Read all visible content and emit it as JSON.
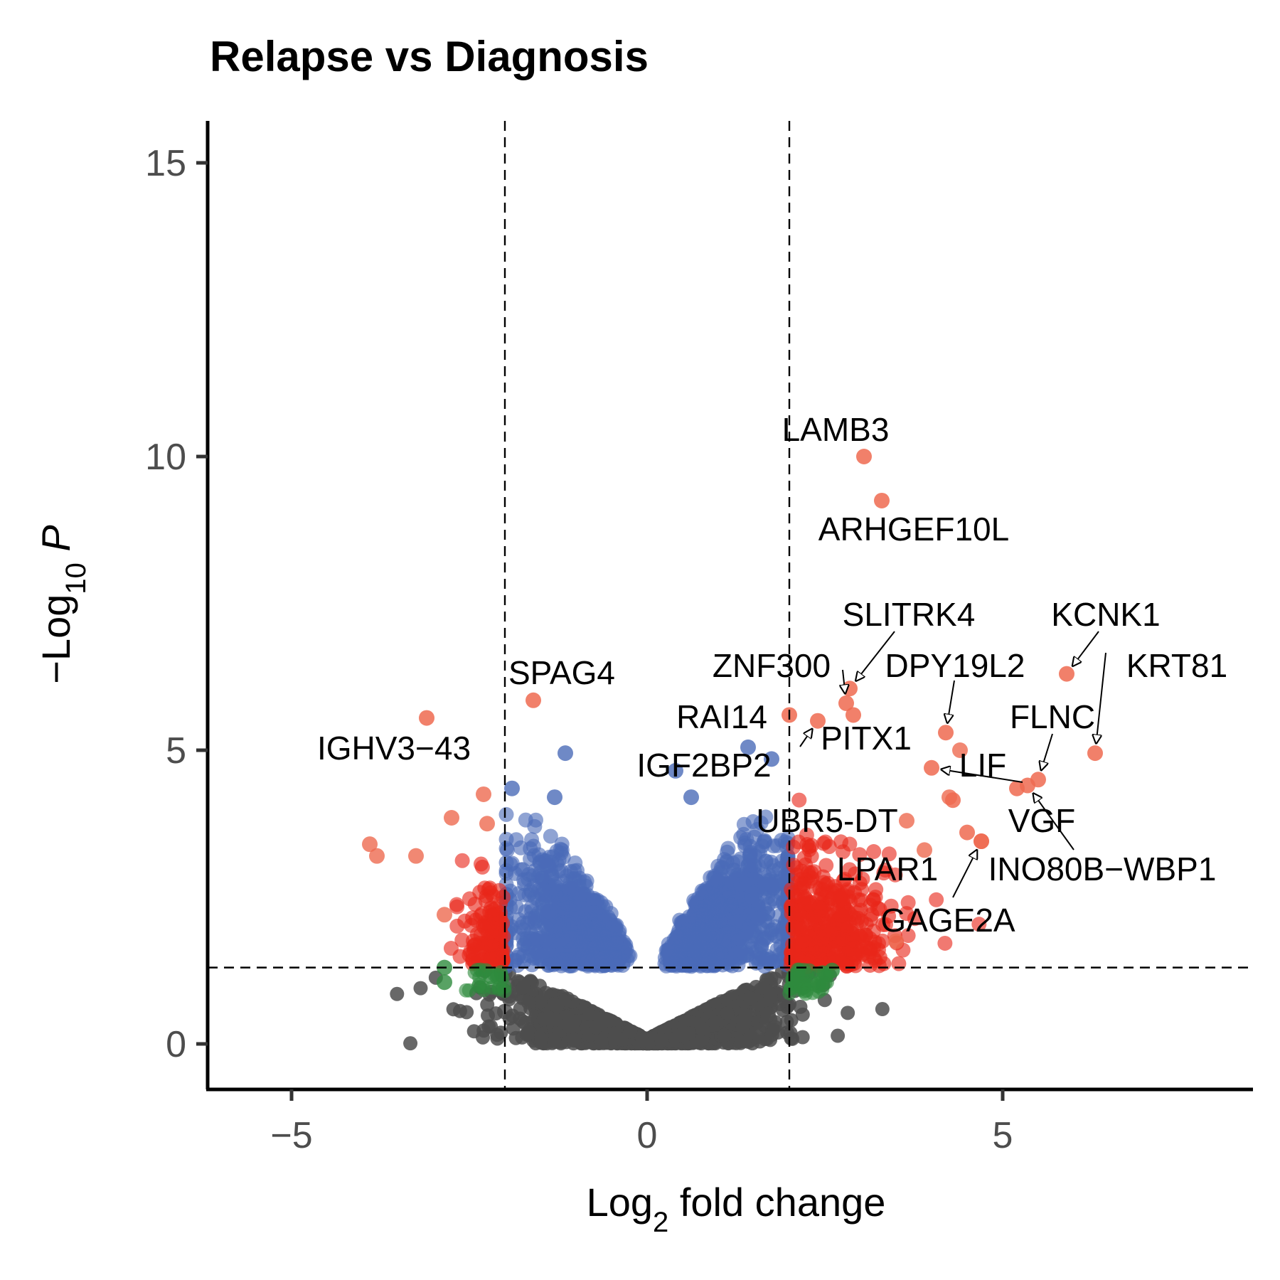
{
  "chart_data": {
    "type": "scatter",
    "title": "Relapse vs Diagnosis",
    "xlabel": {
      "prefix": "Log",
      "sub": "2",
      "suffix": " fold change"
    },
    "ylabel": {
      "prefix": "−Log",
      "sub": "10",
      "suffix": " P"
    },
    "xlim": [
      -6.25,
      8.65
    ],
    "ylim": [
      -0.8,
      15.7
    ],
    "xticks": [
      -5,
      0,
      5
    ],
    "xtick_labels": [
      "−5",
      "0",
      "5"
    ],
    "yticks": [
      0,
      5,
      10,
      15
    ],
    "ytick_labels": [
      "0",
      "5",
      "10",
      "15"
    ],
    "fc_cutoff": 2,
    "p_cutoff": 1.3,
    "grid": false,
    "legend": "none",
    "colors": {
      "NS": "#4d4d4d",
      "log2FC": "#2e8b3d",
      "p": "#4b6bb8",
      "p_and_log2FC": "#e8261a",
      "highlight": "#ee6a50"
    },
    "labeled_points": [
      {
        "gene": "LAMB3",
        "x": 3.05,
        "y": 10.0
      },
      {
        "gene": "ARHGEF10L",
        "x": 3.3,
        "y": 9.25
      },
      {
        "gene": "SLITRK4",
        "x": 2.85,
        "y": 6.05
      },
      {
        "gene": "KCNK1",
        "x": 5.9,
        "y": 6.3
      },
      {
        "gene": "KRT81",
        "x": 6.3,
        "y": 4.95
      },
      {
        "gene": "ZNF300",
        "x": 2.8,
        "y": 5.8
      },
      {
        "gene": "DPY19L2",
        "x": 4.2,
        "y": 5.3
      },
      {
        "gene": "RAI14",
        "x": 2.0,
        "y": 5.6
      },
      {
        "gene": "PITX1",
        "x": 2.9,
        "y": 5.6
      },
      {
        "gene": "FLNC",
        "x": 5.5,
        "y": 4.5
      },
      {
        "gene": "IGF2BP2",
        "x": 2.4,
        "y": 5.5
      },
      {
        "gene": "LIF",
        "x": 4.0,
        "y": 4.7
      },
      {
        "gene": "VGF",
        "x": 5.2,
        "y": 4.35
      },
      {
        "gene": "UBR5-DT",
        "x": 4.3,
        "y": 4.15
      },
      {
        "gene": "SPAG4",
        "x": -1.6,
        "y": 5.85
      },
      {
        "gene": "IGHV3−43",
        "x": -3.1,
        "y": 5.55
      },
      {
        "gene": "LPAR1",
        "x": 4.5,
        "y": 3.6
      },
      {
        "gene": "INO80B−WBP1",
        "x": 5.35,
        "y": 4.4
      },
      {
        "gene": "GAGE2A",
        "x": 4.7,
        "y": 3.45
      }
    ],
    "extra_points": [
      {
        "group": "highlight",
        "x": -3.9,
        "y": 3.4
      },
      {
        "group": "highlight",
        "x": -3.8,
        "y": 3.2
      },
      {
        "group": "highlight",
        "x": -3.25,
        "y": 3.2
      },
      {
        "group": "highlight",
        "x": -2.75,
        "y": 3.85
      },
      {
        "group": "highlight",
        "x": -2.3,
        "y": 4.25
      },
      {
        "group": "highlight",
        "x": -2.25,
        "y": 3.75
      },
      {
        "group": "highlight",
        "x": -2.85,
        "y": 2.2
      },
      {
        "group": "highlight",
        "x": 4.7,
        "y": 3.45
      },
      {
        "group": "highlight",
        "x": 3.5,
        "y": 1.75
      },
      {
        "group": "highlight",
        "x": 3.9,
        "y": 3.3
      },
      {
        "group": "highlight",
        "x": 4.25,
        "y": 4.2
      },
      {
        "group": "highlight",
        "x": 4.4,
        "y": 5.0
      },
      {
        "group": "highlight",
        "x": 3.65,
        "y": 3.8
      },
      {
        "group": "p",
        "x": -1.15,
        "y": 4.95
      },
      {
        "group": "p",
        "x": -1.3,
        "y": 4.2
      },
      {
        "group": "p",
        "x": -1.9,
        "y": 4.35
      },
      {
        "group": "p",
        "x": 0.4,
        "y": 4.65
      },
      {
        "group": "p",
        "x": 0.62,
        "y": 4.2
      },
      {
        "group": "p",
        "x": 1.42,
        "y": 5.05
      },
      {
        "group": "p",
        "x": 1.75,
        "y": 4.85
      },
      {
        "group": "log2FC",
        "x": -2.85,
        "y": 1.3
      },
      {
        "group": "log2FC",
        "x": -2.85,
        "y": 1.05
      },
      {
        "group": "log2FC",
        "x": -2.2,
        "y": 1.15
      },
      {
        "group": "log2FC",
        "x": 2.6,
        "y": 1.25
      },
      {
        "group": "NS",
        "x": -2.0,
        "y": 0.55
      },
      {
        "group": "NS",
        "x": -1.7,
        "y": 0.35
      },
      {
        "group": "NS",
        "x": 1.7,
        "y": 0.5
      }
    ]
  }
}
